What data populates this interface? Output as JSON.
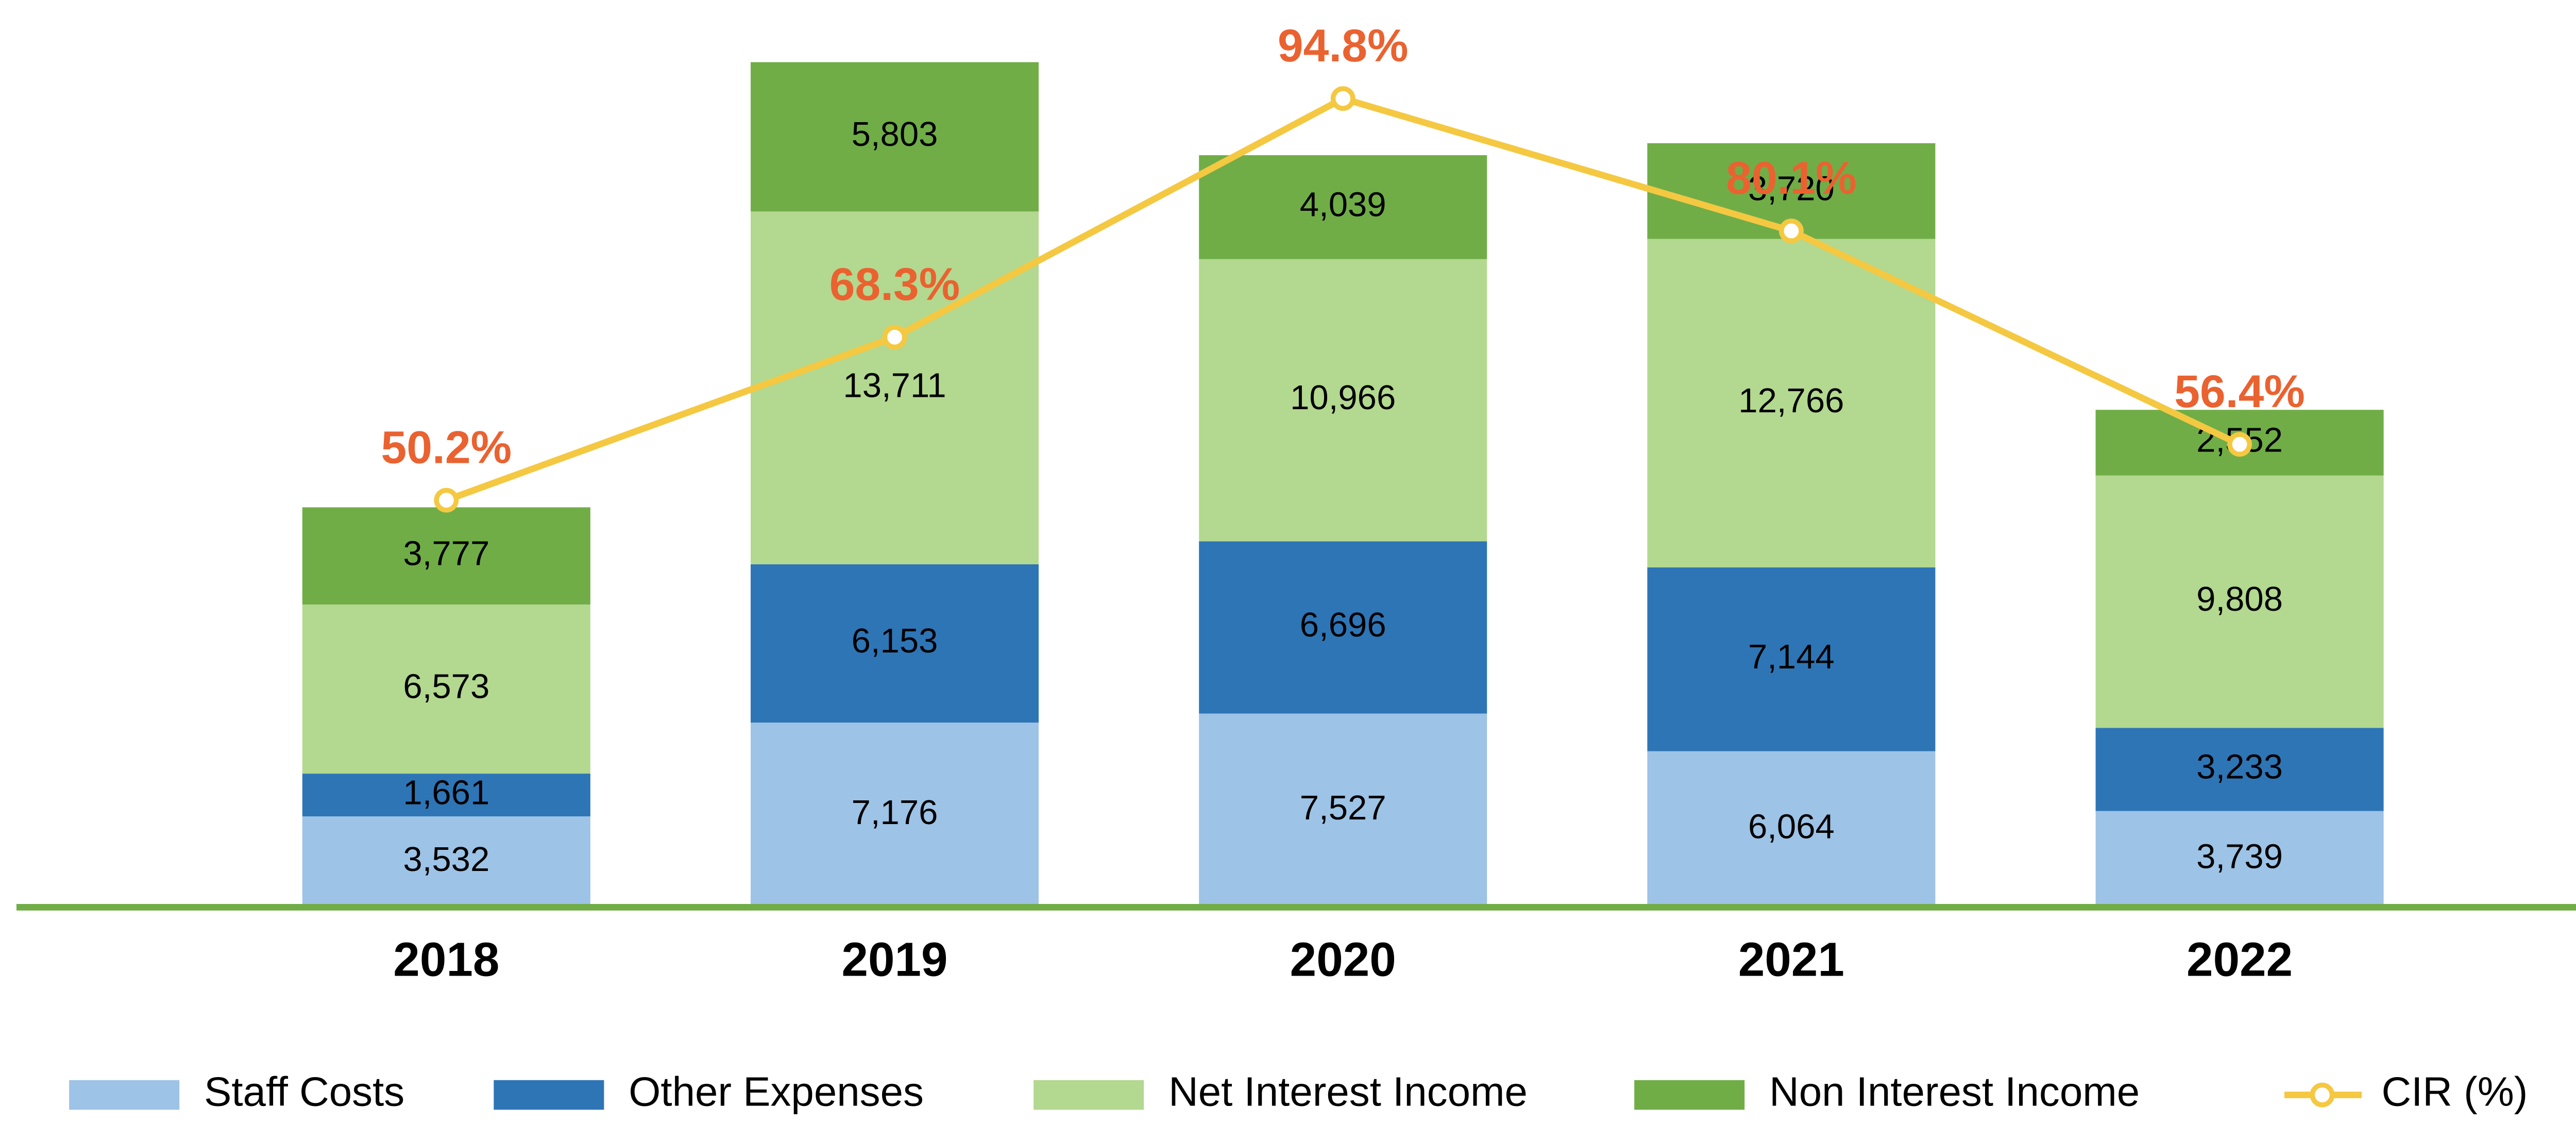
{
  "chart_data": {
    "type": "bar",
    "stacked": true,
    "categories": [
      "2018",
      "2019",
      "2020",
      "2021",
      "2022"
    ],
    "series": [
      {
        "name": "Staff Costs",
        "color": "#9dc3e6",
        "values": [
          3532,
          7176,
          7527,
          6064,
          3739
        ],
        "value_labels": [
          "3,532",
          "7,176",
          "7,527",
          "6,064",
          "3,739"
        ]
      },
      {
        "name": "Other Expenses",
        "color": "#2e75b6",
        "values": [
          1661,
          6153,
          6696,
          7144,
          3233
        ],
        "value_labels": [
          "1,661",
          "6,153",
          "6,696",
          "7,144",
          "3,233"
        ]
      },
      {
        "name": "Net Interest Income",
        "color": "#b3d88f",
        "values": [
          6573,
          13711,
          10966,
          12766,
          9808
        ],
        "value_labels": [
          "6,573",
          "13,711",
          "10,966",
          "12,766",
          "9,808"
        ]
      },
      {
        "name": "Non Interest Income",
        "color": "#70ad47",
        "values": [
          3777,
          5803,
          4039,
          3720,
          2552
        ],
        "value_labels": [
          "3,777",
          "5,803",
          "4,039",
          "3,720",
          "2,552"
        ]
      },
      {
        "name": "CIR (%)",
        "type": "line",
        "axis": "y2",
        "color": "#f5c842",
        "label_color": "#ea6230",
        "values": [
          50.2,
          68.3,
          94.8,
          80.1,
          56.4
        ],
        "value_labels": [
          "50.2%",
          "68.3%",
          "94.8%",
          "80.1%",
          "56.4%"
        ]
      }
    ],
    "ylim": [
      0,
      35000
    ],
    "y2lim": [
      5,
      105
    ],
    "axis_color": "#70ad47",
    "legend": "bottom"
  }
}
